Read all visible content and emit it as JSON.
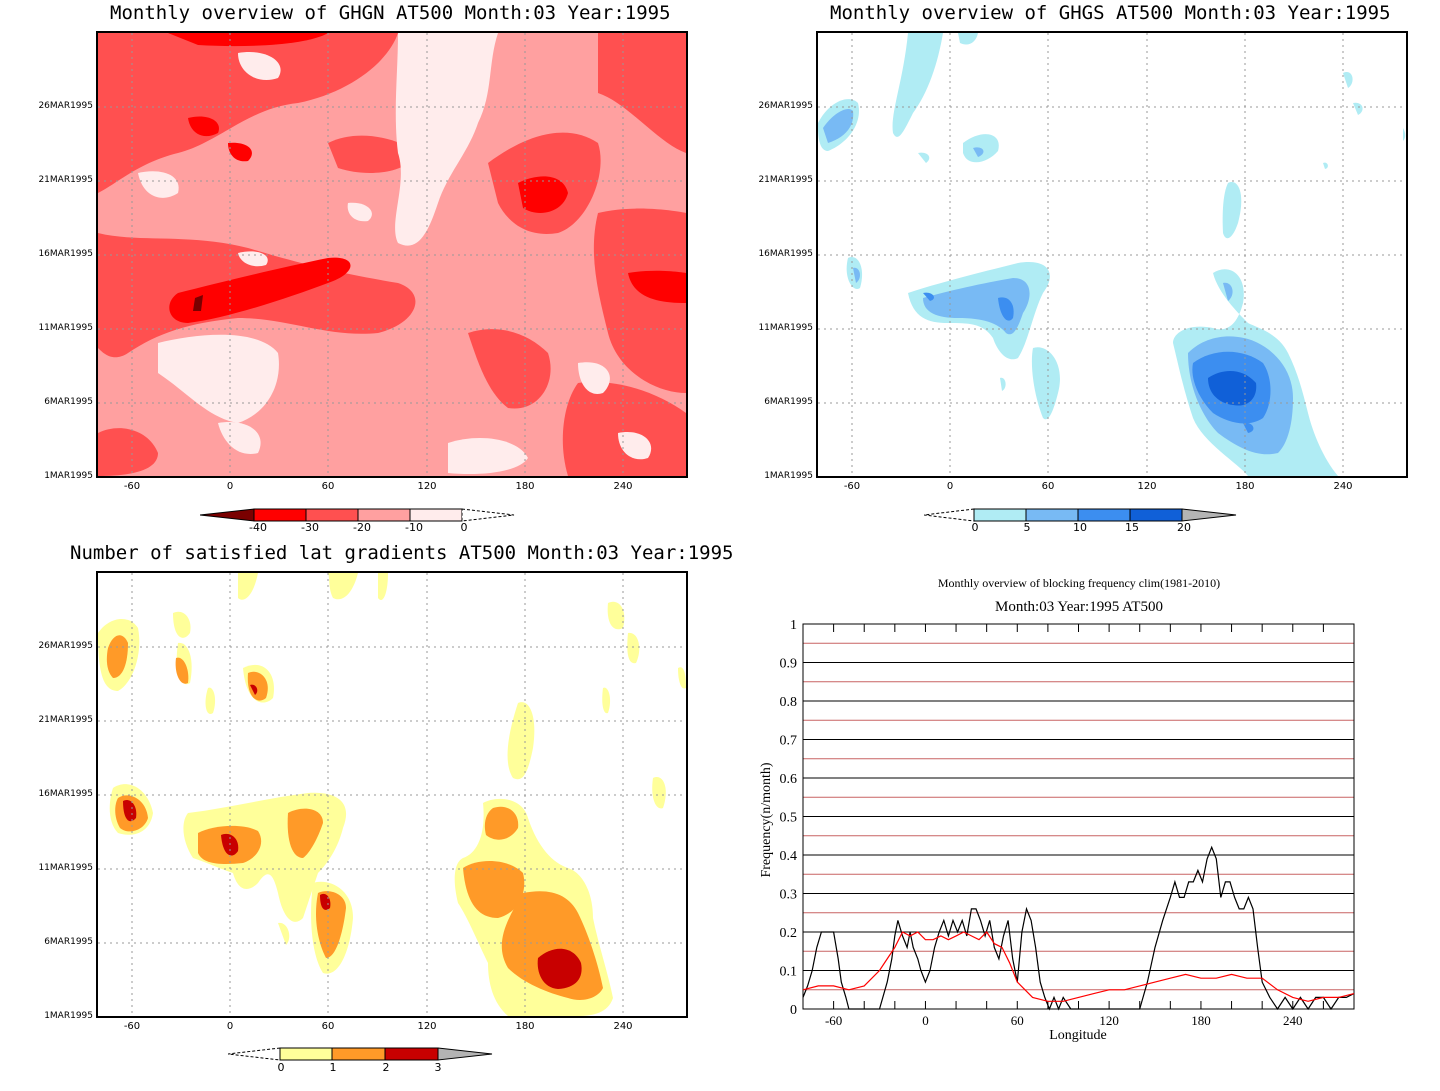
{
  "colors": {
    "ghgn": [
      "#7a0000",
      "#ff0000",
      "#ff5050",
      "#ffa0a0",
      "#ffecec"
    ],
    "ghgs": [
      "#b0ecf4",
      "#78baf4",
      "#3c8ef0",
      "#1060d8",
      "#b4b4b4"
    ],
    "sat": [
      "#ffff9a",
      "#ff9a28",
      "#c80000",
      "#b4b4b4"
    ],
    "freq_black": "#000000",
    "freq_red": "#ff0000"
  },
  "panels": {
    "ghgn": {
      "title": "Monthly overview of GHGN AT500 Month:03 Year:1995",
      "colorbar_labels": [
        "-40",
        "-30",
        "-20",
        "-10",
        "0"
      ]
    },
    "ghgs": {
      "title": "Monthly overview of GHGS AT500 Month:03 Year:1995",
      "colorbar_labels": [
        "0",
        "5",
        "10",
        "15",
        "20"
      ]
    },
    "sat": {
      "title": "Number of satisfied lat gradients AT500 Month:03 Year:1995",
      "colorbar_labels": [
        "0",
        "1",
        "2",
        "3"
      ]
    }
  },
  "y_ticks": [
    "26MAR1995",
    "21MAR1995",
    "16MAR1995",
    "11MAR1995",
    "6MAR1995",
    "1MAR1995"
  ],
  "x_ticks": [
    "-60",
    "0",
    "60",
    "120",
    "180",
    "240"
  ],
  "chart_data": [
    {
      "type": "heatmap",
      "title": "Monthly overview of GHGN AT500 Month:03 Year:1995",
      "x_ticks": [
        -60,
        0,
        60,
        120,
        180,
        240
      ],
      "y_ticks": [
        "26MAR1995",
        "21MAR1995",
        "16MAR1995",
        "11MAR1995",
        "6MAR1995",
        "1MAR1995"
      ],
      "levels": [
        -40,
        -30,
        -20,
        -10,
        0
      ]
    },
    {
      "type": "heatmap",
      "title": "Monthly overview of GHGS AT500 Month:03 Year:1995",
      "x_ticks": [
        -60,
        0,
        60,
        120,
        180,
        240
      ],
      "y_ticks": [
        "26MAR1995",
        "21MAR1995",
        "16MAR1995",
        "11MAR1995",
        "6MAR1995",
        "1MAR1995"
      ],
      "levels": [
        0,
        5,
        10,
        15,
        20
      ]
    },
    {
      "type": "heatmap",
      "title": "Number of satisfied lat gradients AT500 Month:03 Year:1995",
      "x_ticks": [
        -60,
        0,
        60,
        120,
        180,
        240
      ],
      "y_ticks": [
        "26MAR1995",
        "21MAR1995",
        "16MAR1995",
        "11MAR1995",
        "6MAR1995",
        "1MAR1995"
      ],
      "levels": [
        0,
        1,
        2,
        3
      ]
    },
    {
      "type": "line",
      "title": "Monthly overview of blocking frequency clim(1981-2010)",
      "subtitle": "Month:03 Year:1995  AT500",
      "xlabel": "Longitude",
      "ylabel": "Frequency(n/month)",
      "xlim": [
        -80,
        280
      ],
      "ylim": [
        0,
        1
      ],
      "x_ticks": [
        -60,
        0,
        60,
        120,
        180,
        240
      ],
      "y_ticks": [
        0,
        0.1,
        0.2,
        0.3,
        0.4,
        0.5,
        0.6,
        0.7,
        0.8,
        0.9,
        1
      ],
      "y_tick_labels": [
        "0",
        "0.1",
        "0.2",
        "0.3",
        "0.4",
        "0.5",
        "0.6",
        "0.7",
        "0.8",
        "0.9",
        "1"
      ],
      "series": [
        {
          "color": "#000000",
          "x": [
            -80,
            -77,
            -74,
            -71,
            -68,
            -64,
            -60,
            -57,
            -55,
            -52,
            -50,
            -45,
            -40,
            -35,
            -30,
            -25,
            -22,
            -20,
            -18,
            -15,
            -12,
            -10,
            -8,
            -5,
            -3,
            0,
            3,
            6,
            9,
            12,
            15,
            18,
            21,
            24,
            27,
            30,
            33,
            36,
            39,
            42,
            45,
            48,
            51,
            54,
            57,
            60,
            63,
            66,
            69,
            72,
            75,
            78,
            81,
            84,
            87,
            90,
            95,
            100,
            105,
            110,
            120,
            130,
            140,
            145,
            150,
            155,
            160,
            163,
            166,
            169,
            172,
            175,
            178,
            181,
            184,
            187,
            190,
            193,
            196,
            199,
            202,
            205,
            208,
            211,
            214,
            217,
            220,
            225,
            230,
            235,
            240,
            245,
            250,
            255,
            260,
            265,
            270,
            275,
            280
          ],
          "y": [
            0.03,
            0.06,
            0.1,
            0.16,
            0.2,
            0.2,
            0.2,
            0.13,
            0.07,
            0.03,
            0.0,
            0.0,
            0.0,
            0.0,
            0.0,
            0.07,
            0.13,
            0.19,
            0.23,
            0.19,
            0.16,
            0.2,
            0.16,
            0.13,
            0.1,
            0.07,
            0.1,
            0.16,
            0.2,
            0.23,
            0.19,
            0.23,
            0.2,
            0.23,
            0.19,
            0.26,
            0.26,
            0.23,
            0.19,
            0.23,
            0.16,
            0.13,
            0.19,
            0.23,
            0.13,
            0.07,
            0.2,
            0.26,
            0.23,
            0.16,
            0.07,
            0.03,
            0.0,
            0.03,
            0.0,
            0.03,
            0.0,
            0.0,
            0.0,
            0.0,
            0.0,
            0.0,
            0.0,
            0.07,
            0.16,
            0.23,
            0.29,
            0.33,
            0.29,
            0.29,
            0.33,
            0.33,
            0.36,
            0.33,
            0.39,
            0.42,
            0.39,
            0.29,
            0.33,
            0.33,
            0.29,
            0.26,
            0.26,
            0.29,
            0.26,
            0.16,
            0.07,
            0.03,
            0.0,
            0.03,
            0.0,
            0.03,
            0.0,
            0.03,
            0.03,
            0.0,
            0.03,
            0.03,
            0.04
          ]
        },
        {
          "color": "#ff0000",
          "x": [
            -80,
            -70,
            -60,
            -50,
            -40,
            -30,
            -20,
            -15,
            -10,
            -5,
            0,
            5,
            10,
            15,
            20,
            25,
            30,
            35,
            40,
            45,
            50,
            55,
            60,
            70,
            80,
            90,
            100,
            110,
            120,
            130,
            140,
            150,
            160,
            170,
            180,
            190,
            200,
            210,
            220,
            230,
            240,
            250,
            260,
            270,
            280
          ],
          "y": [
            0.05,
            0.06,
            0.06,
            0.05,
            0.06,
            0.1,
            0.16,
            0.2,
            0.19,
            0.2,
            0.18,
            0.18,
            0.19,
            0.18,
            0.19,
            0.2,
            0.19,
            0.18,
            0.2,
            0.17,
            0.16,
            0.12,
            0.07,
            0.03,
            0.02,
            0.02,
            0.03,
            0.04,
            0.05,
            0.05,
            0.06,
            0.07,
            0.08,
            0.09,
            0.08,
            0.08,
            0.09,
            0.08,
            0.08,
            0.05,
            0.03,
            0.02,
            0.03,
            0.03,
            0.04
          ]
        }
      ]
    }
  ]
}
